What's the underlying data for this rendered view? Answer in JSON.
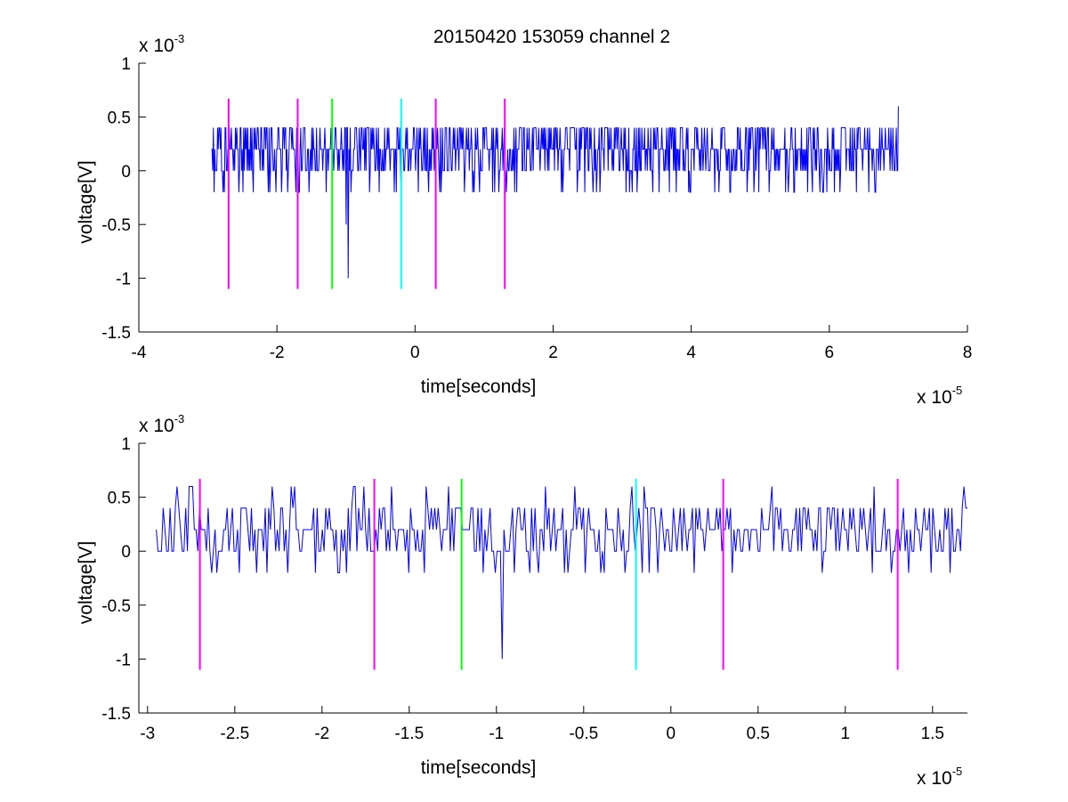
{
  "figure": {
    "title": "20150420 153059 channel 2"
  },
  "chart_data": [
    {
      "type": "line",
      "title": "20150420 153059 channel 2",
      "xlabel": "time[seconds]",
      "ylabel": "voltage[V]",
      "xlim": [
        -4,
        8
      ],
      "ylim": [
        -1.5,
        1
      ],
      "x_multiplier": "x 10",
      "x_exponent": "-5",
      "y_multiplier": "x 10",
      "y_exponent": "-3",
      "x_ticks": [
        -4,
        -2,
        0,
        2,
        4,
        6,
        8
      ],
      "x_tick_labels": [
        "-4",
        "-2",
        "0",
        "2",
        "4",
        "6",
        "8"
      ],
      "y_ticks": [
        -1.5,
        -1,
        -0.5,
        0,
        0.5,
        1
      ],
      "y_tick_labels": [
        "-1.5",
        "-1",
        "-0.5",
        "0",
        "0.5",
        "1"
      ],
      "grid": false,
      "signal": {
        "color": "#0000ff",
        "x_range": [
          -2.95,
          7.0
        ],
        "levels": [
          -0.2,
          0,
          0.2,
          0.4
        ],
        "notable_points": [
          {
            "x": -1.0,
            "y": -0.5
          },
          {
            "x": -0.97,
            "y": -1.0
          },
          {
            "x": 7.0,
            "y": 0.6
          }
        ]
      },
      "markers": [
        {
          "x": -2.7,
          "color": "#ff00ff"
        },
        {
          "x": -1.7,
          "color": "#ff00ff"
        },
        {
          "x": -1.2,
          "color": "#00ff00"
        },
        {
          "x": -0.2,
          "color": "#00ffff"
        },
        {
          "x": 0.3,
          "color": "#ff00ff"
        },
        {
          "x": 1.3,
          "color": "#ff00ff"
        }
      ],
      "marker_span": [
        -1.1,
        0.67
      ]
    },
    {
      "type": "line",
      "xlabel": "time[seconds]",
      "ylabel": "voltage[V]",
      "xlim": [
        -3.05,
        1.7
      ],
      "ylim": [
        -1.5,
        1
      ],
      "x_multiplier": "x 10",
      "x_exponent": "-5",
      "y_multiplier": "x 10",
      "y_exponent": "-3",
      "x_ticks": [
        -3,
        -2.5,
        -2,
        -1.5,
        -1,
        -0.5,
        0,
        0.5,
        1,
        1.5
      ],
      "x_tick_labels": [
        "-3",
        "-2.5",
        "-2",
        "-1.5",
        "-1",
        "-0.5",
        "0",
        "0.5",
        "1",
        "1.5"
      ],
      "y_ticks": [
        -1.5,
        -1,
        -0.5,
        0,
        0.5,
        1
      ],
      "y_tick_labels": [
        "-1.5",
        "-1",
        "-0.5",
        "0",
        "0.5",
        "1"
      ],
      "grid": false,
      "signal": {
        "color": "#0000ff",
        "x_range": [
          -2.95,
          1.7
        ],
        "levels": [
          -0.2,
          0,
          0.2,
          0.4,
          0.6
        ],
        "notable_points": [
          {
            "x": -0.97,
            "y": -1.0
          },
          {
            "x": -1.4,
            "y": 0.6
          },
          {
            "x": -1.6,
            "y": 0.6
          }
        ]
      },
      "markers": [
        {
          "x": -2.7,
          "color": "#ff00ff"
        },
        {
          "x": -1.7,
          "color": "#ff00ff"
        },
        {
          "x": -1.2,
          "color": "#00ff00"
        },
        {
          "x": -0.2,
          "color": "#00ffff"
        },
        {
          "x": 0.3,
          "color": "#ff00ff"
        },
        {
          "x": 1.3,
          "color": "#ff00ff"
        }
      ],
      "marker_span": [
        -1.1,
        0.67
      ]
    }
  ]
}
